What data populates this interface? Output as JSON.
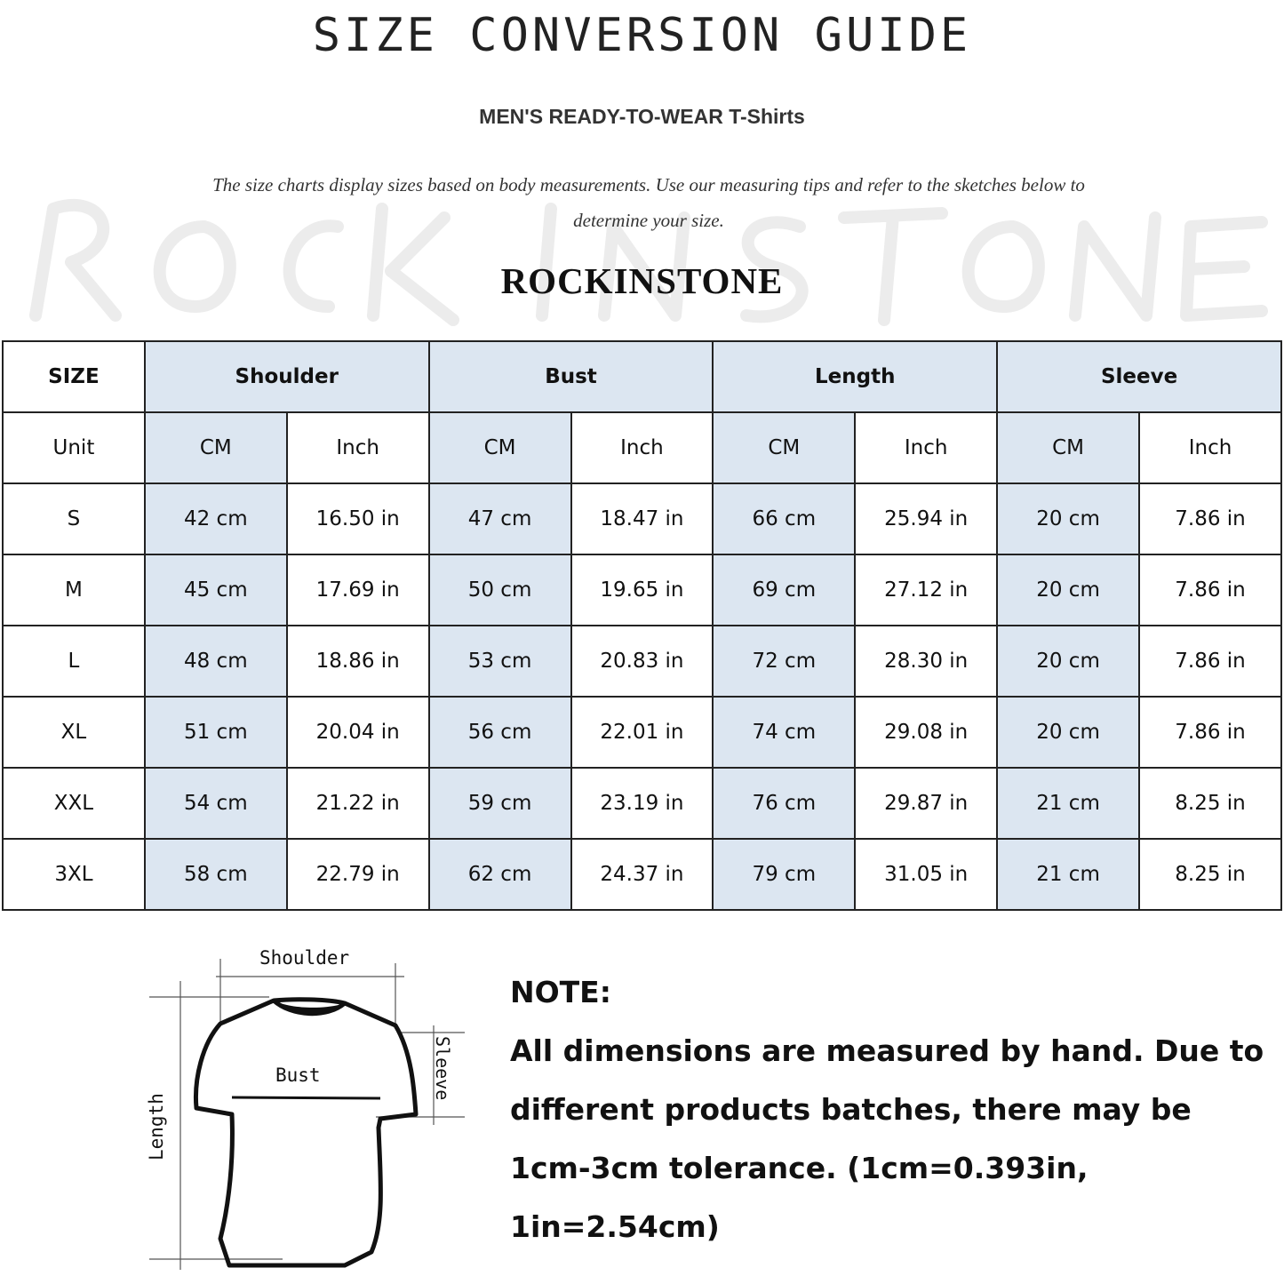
{
  "title": "SIZE CONVERSION GUIDE",
  "subtitle": "MEN'S READY-TO-WEAR T-Shirts",
  "description": "The size charts display sizes based on body measurements. Use our measuring tips and refer to the sketches below to determine your size.",
  "watermark": "ROCK IN STONE",
  "brand": "ROCKINSTONE",
  "table": {
    "size_header": "SIZE",
    "unit_label": "Unit",
    "groups": [
      "Shoulder",
      "Bust",
      "Length",
      "Sleeve"
    ],
    "units": [
      "CM",
      "Inch",
      "CM",
      "Inch",
      "CM",
      "Inch",
      "CM",
      "Inch"
    ],
    "rows": [
      {
        "size": "S",
        "values": [
          "42 cm",
          "16.50 in",
          "47 cm",
          "18.47  in",
          "66 cm",
          "25.94  in",
          "20 cm",
          "7.86  in"
        ]
      },
      {
        "size": "M",
        "values": [
          "45 cm",
          "17.69  in",
          "50 cm",
          "19.65  in",
          "69 cm",
          "27.12  in",
          "20 cm",
          "7.86  in"
        ]
      },
      {
        "size": "L",
        "values": [
          "48 cm",
          "18.86  in",
          "53 cm",
          "20.83  in",
          "72 cm",
          "28.30  in",
          "20 cm",
          "7.86  in"
        ]
      },
      {
        "size": "XL",
        "values": [
          "51 cm",
          "20.04  in",
          "56 cm",
          "22.01  in",
          "74 cm",
          "29.08  in",
          "20 cm",
          "7.86  in"
        ]
      },
      {
        "size": "XXL",
        "values": [
          "54 cm",
          "21.22  in",
          "59 cm",
          "23.19  in",
          "76 cm",
          "29.87  in",
          "21 cm",
          "8.25  in"
        ]
      },
      {
        "size": "3XL",
        "values": [
          "58 cm",
          "22.79  in",
          "62 cm",
          "24.37  in",
          "79 cm",
          "31.05  in",
          "21 cm",
          "8.25  in"
        ]
      }
    ]
  },
  "sketch": {
    "shoulder": "Shoulder",
    "bust": "Bust",
    "sleeve": "Sleeve",
    "length": "Length"
  },
  "note": {
    "heading": "NOTE:",
    "text": "All dimensions are measured by hand. Due to different products batches, there may be 1cm-3cm tolerance. (1cm=0.393in, 1in=2.54cm)"
  },
  "colors": {
    "cm_column": "#dce6f1",
    "border": "#222222"
  }
}
